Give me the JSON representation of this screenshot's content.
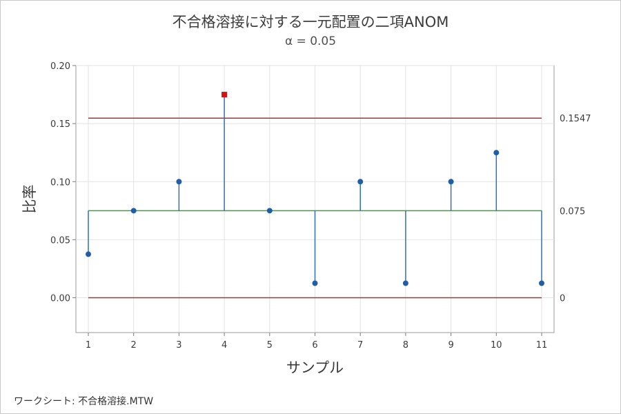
{
  "chart_data": {
    "type": "line",
    "title": "不合格溶接に対する一元配置の二項ANOM",
    "subtitle": "α = 0.05",
    "xlabel": "サンプル",
    "ylabel": "比率",
    "x": [
      1,
      2,
      3,
      4,
      5,
      6,
      7,
      8,
      9,
      10,
      11
    ],
    "values": [
      0.0375,
      0.075,
      0.1,
      0.175,
      0.075,
      0.0125,
      0.1,
      0.0125,
      0.1,
      0.125,
      0.0125
    ],
    "center_line": 0.075,
    "upper_limit": 0.1547,
    "lower_limit": 0,
    "center_label": "0.075",
    "upper_label": "0.1547",
    "lower_label": "0",
    "ylim": [
      -0.03,
      0.2
    ],
    "yticks": [
      0.0,
      0.05,
      0.1,
      0.15,
      0.2
    ],
    "ytick_labels": [
      "0.00",
      "0.05",
      "0.10",
      "0.15",
      "0.20"
    ],
    "xticks": [
      "1",
      "2",
      "3",
      "4",
      "5",
      "6",
      "7",
      "8",
      "9",
      "10",
      "11"
    ],
    "grid": true,
    "colors": {
      "points": "#1f5fa8",
      "stem": "#2e6fb7",
      "out_of_limit": "#d21414",
      "center": "#3aa13a",
      "limits": "#a83232",
      "grid": "#e2e2e2"
    }
  },
  "footer": "ワークシート: 不合格溶接.MTW"
}
